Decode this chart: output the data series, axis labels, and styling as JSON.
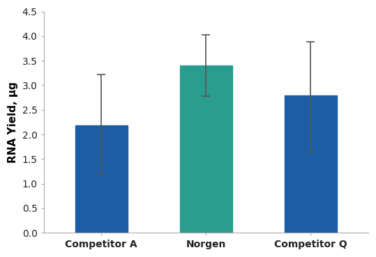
{
  "categories": [
    "Competitor A",
    "Norgen",
    "Competitor Q"
  ],
  "values": [
    2.18,
    3.4,
    2.8
  ],
  "errors_upper": [
    1.04,
    0.62,
    1.08
  ],
  "errors_lower": [
    1.0,
    0.62,
    1.15
  ],
  "bar_colors": [
    "#1B5EA6",
    "#2A9D8F",
    "#1B5EA6"
  ],
  "ylabel": "RNA Yield, µg",
  "ylim": [
    0.0,
    4.5
  ],
  "yticks": [
    0.0,
    0.5,
    1.0,
    1.5,
    2.0,
    2.5,
    3.0,
    3.5,
    4.0,
    4.5
  ],
  "bar_width": 0.5,
  "error_capsize": 4,
  "error_color": "#555555",
  "error_linewidth": 1.2,
  "background_color": "#ffffff",
  "spine_color": "#aaaaaa",
  "ylabel_fontsize": 11,
  "tick_fontsize": 10,
  "label_fontweight": "bold",
  "figsize": [
    5.39,
    3.69
  ],
  "dpi": 100,
  "xlim": [
    -0.55,
    2.55
  ]
}
